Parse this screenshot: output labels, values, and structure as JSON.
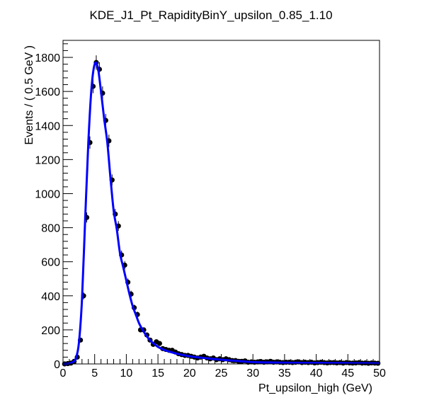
{
  "chart_data": {
    "type": "scatter",
    "title": "KDE_J1_Pt_RapidityBinY_upsilon_0.85_1.10",
    "xlabel": "Pt_upsilon_high (GeV)",
    "ylabel": "Events / ( 0.5 GeV )",
    "xlim": [
      0,
      50
    ],
    "ylim": [
      0,
      1900
    ],
    "xticks": [
      0,
      5,
      10,
      15,
      20,
      25,
      30,
      35,
      40,
      45,
      50
    ],
    "xtick_labels": [
      "0",
      "5",
      "10",
      "15",
      "20",
      "25",
      "30",
      "35",
      "40",
      "45",
      "50"
    ],
    "yticks": [
      0,
      200,
      400,
      600,
      800,
      1000,
      1200,
      1400,
      1600,
      1800
    ],
    "ytick_labels": [
      "0",
      "200",
      "400",
      "600",
      "800",
      "1000",
      "1200",
      "1400",
      "1600",
      "1800"
    ],
    "grid": false,
    "legend": "none",
    "colors": {
      "points": "#000000",
      "curve": "#0000ff",
      "frame": "#000000"
    },
    "series": [
      {
        "type": "points_with_errors",
        "x": [
          0.25,
          0.75,
          1.25,
          1.75,
          2.25,
          2.75,
          3.25,
          3.75,
          4.25,
          4.75,
          5.25,
          5.75,
          6.25,
          6.75,
          7.25,
          7.75,
          8.25,
          8.75,
          9.25,
          9.75,
          10.25,
          10.75,
          11.25,
          11.75,
          12.25,
          12.75,
          13.25,
          13.75,
          14.25,
          14.75,
          15.25,
          15.75,
          16.25,
          16.75,
          17.25,
          17.75,
          18.25,
          18.75,
          19.25,
          19.75,
          20.25,
          20.75,
          21.25,
          21.75,
          22.25,
          22.75,
          23.25,
          23.75,
          24.25,
          24.75,
          25.25,
          25.75,
          26.25,
          26.75,
          27.25,
          27.75,
          28.25,
          28.75,
          29.25,
          29.75,
          30.25,
          30.75,
          31.25,
          31.75,
          32.25,
          32.75,
          33.25,
          33.75,
          34.25,
          34.75,
          35.25,
          35.75,
          36.25,
          36.75,
          37.25,
          37.75,
          38.25,
          38.75,
          39.25,
          39.75,
          40.25,
          40.75,
          41.25,
          41.75,
          42.25,
          42.75,
          43.25,
          43.75,
          44.25,
          44.75,
          45.25,
          45.75,
          46.25,
          46.75,
          47.25,
          47.75,
          48.25,
          48.75,
          49.25,
          49.75
        ],
        "y": [
          0,
          2,
          5,
          15,
          40,
          140,
          400,
          860,
          1300,
          1630,
          1770,
          1730,
          1590,
          1430,
          1310,
          1080,
          880,
          810,
          640,
          580,
          480,
          410,
          330,
          290,
          200,
          200,
          170,
          140,
          115,
          130,
          120,
          90,
          85,
          80,
          80,
          70,
          60,
          55,
          50,
          50,
          45,
          40,
          35,
          40,
          45,
          35,
          30,
          35,
          25,
          30,
          25,
          30,
          25,
          20,
          20,
          15,
          15,
          18,
          10,
          12,
          10,
          12,
          14,
          10,
          12,
          15,
          10,
          12,
          10,
          8,
          10,
          10,
          8,
          10,
          12,
          8,
          10,
          8,
          10,
          6,
          8,
          10,
          8,
          6,
          8,
          8,
          6,
          8,
          5,
          8,
          6,
          5,
          6,
          8,
          5,
          6,
          4,
          6,
          5,
          4
        ]
      },
      {
        "type": "curve",
        "x": [
          0,
          0.5,
          1,
          1.5,
          2,
          2.5,
          3,
          3.5,
          4,
          4.5,
          5,
          5.5,
          6,
          6.5,
          7,
          7.5,
          8,
          8.5,
          9,
          9.5,
          10,
          10.5,
          11,
          11.5,
          12,
          12.5,
          13,
          13.5,
          14,
          14.5,
          15,
          16,
          17,
          18,
          19,
          20,
          21,
          22,
          23,
          24,
          25,
          26,
          27,
          28,
          29,
          30,
          32,
          34,
          36,
          38,
          40,
          42,
          44,
          46,
          48,
          50
        ],
        "y": [
          0,
          0,
          3,
          10,
          30,
          120,
          380,
          850,
          1300,
          1620,
          1760,
          1740,
          1600,
          1440,
          1300,
          1090,
          900,
          790,
          650,
          570,
          490,
          410,
          340,
          290,
          240,
          205,
          175,
          150,
          130,
          115,
          100,
          82,
          70,
          60,
          52,
          45,
          40,
          36,
          32,
          28,
          25,
          22,
          19,
          16,
          13,
          11,
          9,
          8,
          7,
          6,
          6,
          5,
          5,
          4,
          4,
          3
        ]
      }
    ]
  }
}
